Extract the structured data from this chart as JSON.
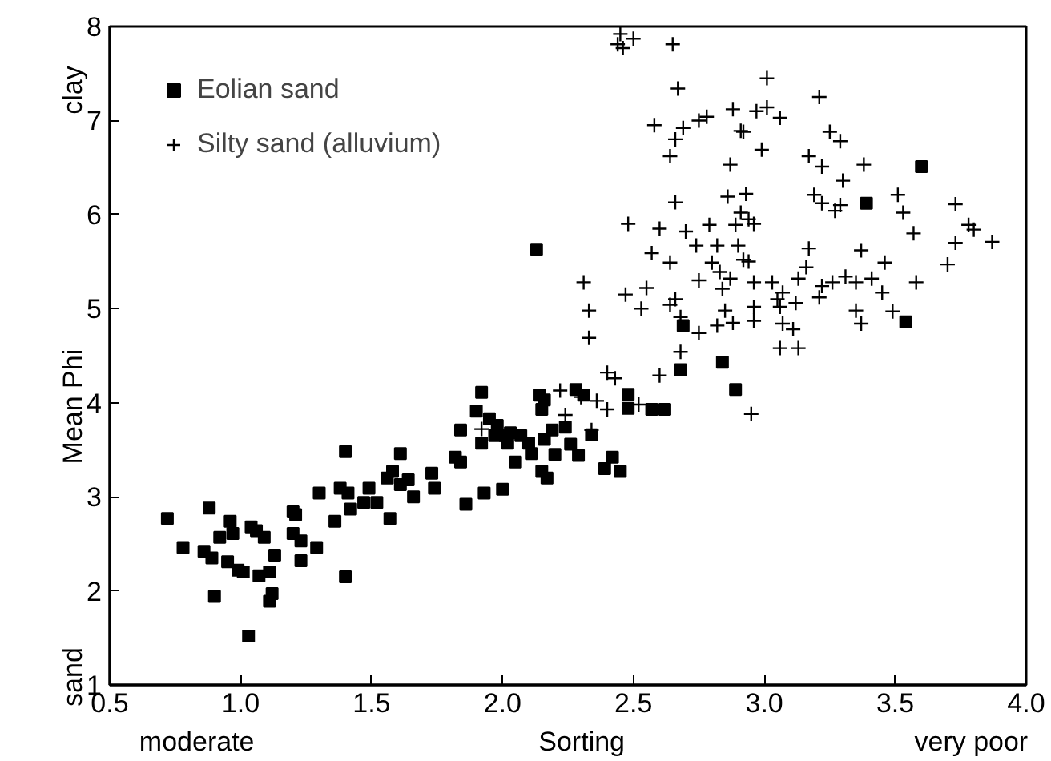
{
  "chart_data": {
    "type": "scatter",
    "xlabel": "Sorting",
    "ylabel": "Mean Phi",
    "annotations": [
      "clay",
      "sand",
      "moderate",
      "very poor"
    ],
    "xlim": [
      0.5,
      4.0
    ],
    "xticks": [
      {
        "value": 0.5,
        "label": "0.5"
      },
      {
        "value": 1.0,
        "label": "1.0"
      },
      {
        "value": 1.5,
        "label": "1.5"
      },
      {
        "value": 2.0,
        "label": "2.0"
      },
      {
        "value": 2.5,
        "label": "2.5"
      },
      {
        "value": 3.0,
        "label": "3.0"
      },
      {
        "value": 3.5,
        "label": "3.5"
      },
      {
        "value": 4.0,
        "label": "4.0"
      }
    ],
    "ylim": [
      1,
      8
    ],
    "yticks": [
      1,
      2,
      3,
      4,
      5,
      6,
      7,
      8
    ],
    "grid": false,
    "legend": "top left",
    "series": [
      {
        "name": "Eolian sand",
        "color": "#000000",
        "marker": "square",
        "x": [
          0.72,
          0.78,
          0.88,
          0.86,
          0.89,
          0.9,
          0.92,
          0.96,
          0.97,
          0.95,
          0.99,
          1.01,
          1.04,
          1.06,
          1.09,
          1.03,
          1.07,
          1.11,
          1.13,
          1.12,
          1.11,
          1.2,
          1.21,
          1.2,
          1.23,
          1.23,
          1.29,
          1.3,
          1.36,
          1.38,
          1.4,
          1.4,
          1.41,
          1.42,
          1.47,
          1.49,
          1.52,
          1.56,
          1.57,
          1.58,
          1.61,
          1.61,
          1.64,
          1.66,
          1.73,
          1.74,
          1.82,
          1.84,
          1.84,
          1.86,
          1.9,
          1.92,
          1.92,
          1.93,
          1.95,
          1.97,
          1.98,
          2.0,
          2.01,
          2.02,
          2.03,
          2.05,
          2.07,
          2.1,
          2.11,
          2.13,
          2.14,
          2.15,
          2.15,
          2.16,
          2.17,
          2.16,
          2.19,
          2.2,
          2.24,
          2.26,
          2.28,
          2.29,
          2.31,
          2.34,
          2.39,
          2.42,
          2.45,
          2.48,
          2.48,
          2.57,
          2.62,
          2.68,
          2.69,
          2.84,
          2.89,
          3.39,
          3.54,
          3.6
        ],
        "values": [
          2.77,
          2.46,
          2.88,
          2.42,
          2.35,
          1.94,
          2.57,
          2.74,
          2.61,
          2.31,
          2.22,
          2.2,
          2.68,
          2.64,
          2.57,
          1.52,
          2.16,
          2.2,
          2.38,
          1.97,
          1.89,
          2.84,
          2.81,
          2.61,
          2.53,
          2.32,
          2.46,
          3.04,
          2.74,
          3.09,
          3.48,
          2.15,
          3.04,
          2.87,
          2.94,
          3.09,
          2.94,
          3.2,
          2.77,
          3.27,
          3.46,
          3.13,
          3.18,
          3.0,
          3.25,
          3.09,
          3.42,
          3.71,
          3.37,
          2.92,
          3.91,
          4.11,
          3.57,
          3.04,
          3.83,
          3.65,
          3.76,
          3.08,
          3.65,
          3.57,
          3.68,
          3.37,
          3.65,
          3.57,
          3.46,
          5.63,
          4.08,
          3.93,
          3.27,
          4.03,
          3.2,
          3.61,
          3.71,
          3.45,
          3.74,
          3.56,
          4.14,
          3.44,
          4.08,
          3.66,
          3.3,
          3.42,
          3.27,
          4.09,
          3.94,
          3.93,
          3.93,
          4.35,
          4.82,
          4.43,
          4.14,
          6.12,
          4.86,
          6.51
        ]
      },
      {
        "name": "Silty sand (alluvium)",
        "color": "#000000",
        "marker": "cross",
        "x": [
          2.45,
          2.44,
          2.46,
          2.5,
          2.65,
          2.67,
          2.58,
          2.64,
          2.66,
          2.69,
          2.75,
          2.78,
          2.88,
          2.91,
          2.92,
          2.97,
          3.01,
          3.01,
          3.06,
          2.99,
          2.87,
          3.21,
          3.25,
          3.29,
          3.17,
          3.22,
          3.3,
          3.38,
          2.66,
          2.86,
          2.93,
          2.91,
          2.94,
          2.96,
          2.89,
          2.48,
          2.6,
          2.7,
          2.79,
          3.19,
          3.22,
          3.27,
          3.29,
          3.51,
          3.53,
          3.57,
          3.73,
          3.78,
          3.8,
          3.87,
          3.73,
          3.7,
          2.57,
          2.64,
          2.74,
          2.82,
          2.83,
          2.8,
          2.9,
          2.92,
          2.94,
          3.17,
          3.16,
          3.37,
          3.46,
          2.31,
          2.33,
          2.33,
          2.47,
          2.55,
          2.53,
          2.64,
          2.66,
          2.68,
          2.75,
          2.84,
          2.87,
          2.85,
          2.88,
          2.82,
          2.75,
          2.96,
          2.96,
          2.96,
          3.03,
          3.05,
          3.06,
          3.07,
          3.12,
          3.13,
          3.07,
          3.11,
          3.06,
          3.13,
          3.21,
          3.22,
          3.26,
          3.31,
          3.35,
          3.35,
          3.37,
          3.41,
          3.45,
          3.49,
          3.58,
          2.68,
          2.6,
          2.95,
          2.4,
          2.43,
          2.4,
          2.36,
          2.3,
          2.22,
          2.24,
          2.34,
          2.52,
          1.92
        ],
        "values": [
          7.92,
          7.81,
          7.77,
          7.87,
          7.81,
          7.34,
          6.95,
          6.62,
          6.8,
          6.92,
          7.0,
          7.04,
          7.12,
          6.89,
          6.88,
          7.1,
          7.14,
          7.45,
          7.03,
          6.69,
          6.53,
          7.25,
          6.88,
          6.78,
          6.62,
          6.51,
          6.36,
          6.53,
          6.13,
          6.19,
          6.22,
          6.02,
          5.95,
          5.9,
          5.89,
          5.9,
          5.85,
          5.82,
          5.89,
          6.21,
          6.12,
          6.04,
          6.1,
          6.21,
          6.02,
          5.8,
          6.11,
          5.89,
          5.84,
          5.71,
          5.7,
          5.47,
          5.59,
          5.49,
          5.67,
          5.67,
          5.39,
          5.49,
          5.67,
          5.52,
          5.5,
          5.64,
          5.44,
          5.62,
          5.49,
          5.28,
          4.98,
          4.69,
          5.15,
          5.22,
          5.0,
          5.04,
          5.1,
          4.91,
          5.3,
          5.21,
          5.32,
          4.98,
          4.85,
          4.82,
          4.74,
          5.28,
          5.02,
          4.87,
          5.28,
          5.1,
          5.02,
          5.17,
          5.06,
          5.32,
          4.84,
          4.78,
          4.58,
          4.58,
          5.12,
          5.24,
          5.28,
          5.34,
          5.28,
          4.98,
          4.84,
          5.32,
          5.17,
          4.97,
          5.28,
          4.54,
          4.29,
          3.88,
          4.32,
          4.26,
          3.93,
          4.02,
          4.06,
          4.13,
          3.87,
          3.71,
          3.98,
          3.72
        ]
      }
    ]
  }
}
